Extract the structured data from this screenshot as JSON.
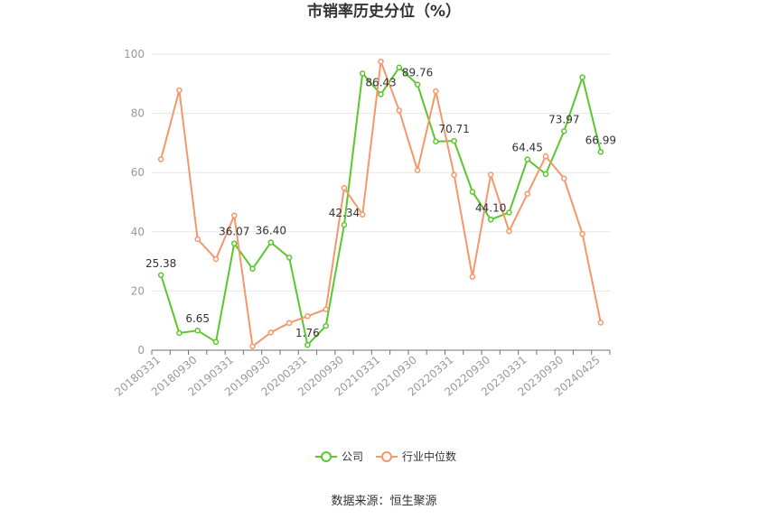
{
  "chart_data": {
    "type": "line",
    "title": "市销率历史分位（%）",
    "source": "数据来源：恒生聚源",
    "ylim": [
      0,
      100
    ],
    "yticks": [
      0,
      20,
      40,
      60,
      80,
      100
    ],
    "grid": true,
    "legend_position": "bottom-center",
    "x": [
      "20180331",
      "20180630",
      "20180930",
      "20181231",
      "20190331",
      "20190630",
      "20190930",
      "20191231",
      "20200331",
      "20200630",
      "20200930",
      "20201231",
      "20210331",
      "20210630",
      "20210930",
      "20211231",
      "20220331",
      "20220630",
      "20220930",
      "20221231",
      "20230331",
      "20230630",
      "20230930",
      "20231231",
      "20240425"
    ],
    "xtick_labels": [
      "20180331",
      "20180930",
      "20190331",
      "20190930",
      "20200331",
      "20200930",
      "20210331",
      "20210930",
      "20220331",
      "20220930",
      "20230331",
      "20230930",
      "20240425"
    ],
    "series": [
      {
        "name": "公司",
        "color": "#5ac72d",
        "values": [
          25.38,
          5.8,
          6.65,
          2.8,
          36.07,
          27.5,
          36.4,
          31.3,
          1.76,
          8.2,
          42.34,
          93.5,
          86.43,
          95.5,
          89.76,
          70.5,
          70.71,
          53.5,
          44.1,
          46.5,
          64.45,
          59.5,
          73.97,
          92.2,
          66.99
        ],
        "labels": {
          "0": "25.38",
          "2": "6.65",
          "4": "36.07",
          "6": "36.40",
          "8": "1.76",
          "10": "42.34",
          "12": "86.43",
          "14": "89.76",
          "16": "70.71",
          "18": "44.10",
          "20": "64.45",
          "22": "73.97",
          "24": "66.99"
        }
      },
      {
        "name": "行业中位数",
        "color": "#f5976a",
        "values": [
          64.5,
          87.8,
          37.5,
          30.8,
          45.5,
          1.3,
          6.0,
          9.2,
          11.5,
          13.8,
          54.8,
          45.8,
          97.5,
          81.0,
          60.8,
          87.5,
          59.2,
          24.8,
          59.3,
          40.2,
          52.8,
          65.5,
          58.0,
          39.3,
          9.3
        ]
      }
    ]
  }
}
